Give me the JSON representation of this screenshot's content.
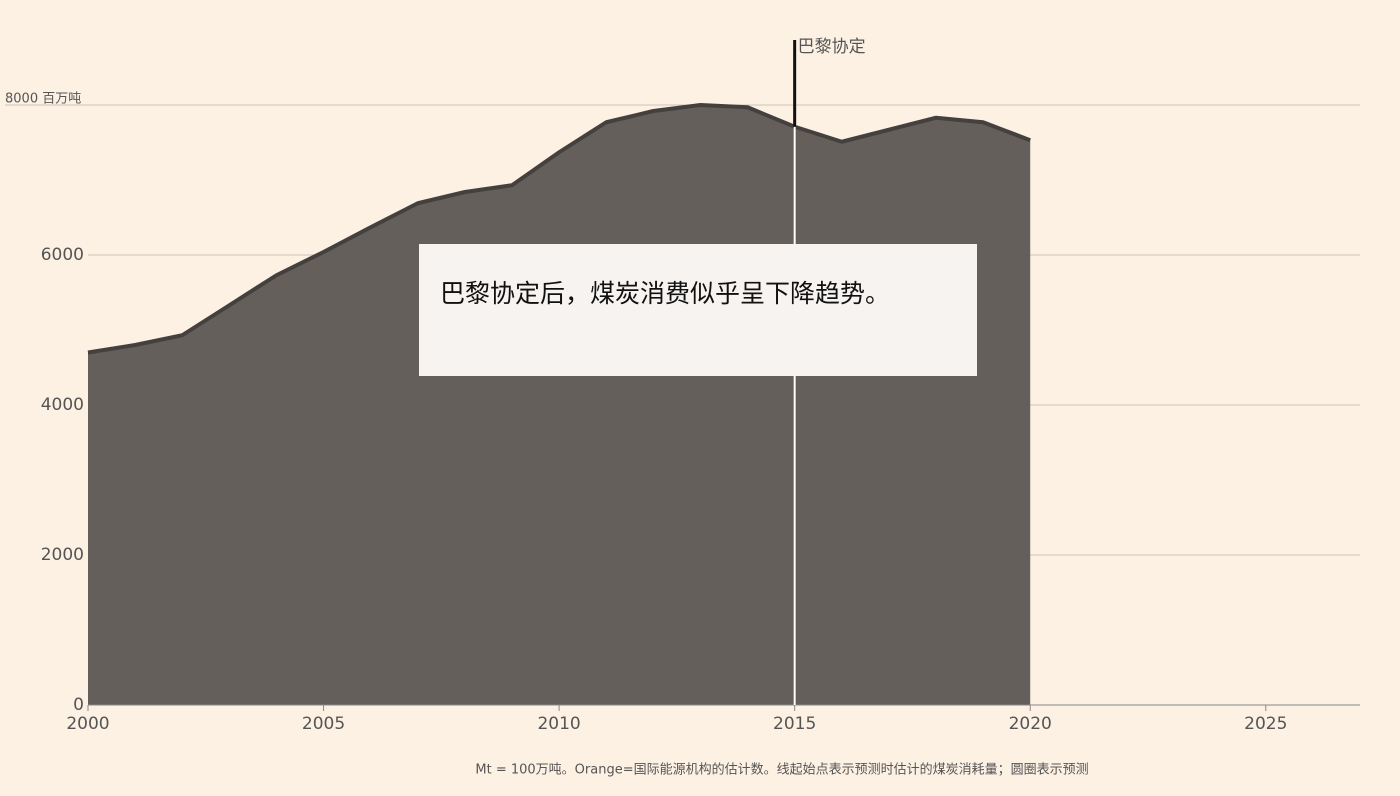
{
  "chart_data": {
    "type": "area",
    "x": [
      2000,
      2001,
      2002,
      2003,
      2004,
      2005,
      2006,
      2007,
      2008,
      2009,
      2010,
      2011,
      2012,
      2013,
      2014,
      2015,
      2016,
      2017,
      2018,
      2019,
      2020
    ],
    "values": [
      4700,
      4800,
      4930,
      5330,
      5730,
      6040,
      6370,
      6690,
      6840,
      6930,
      7370,
      7770,
      7920,
      8000,
      7970,
      7710,
      7510,
      7670,
      7830,
      7770,
      7530
    ],
    "color": "#655f5b",
    "line_color": "#44403e",
    "xlim": [
      2000,
      2027
    ],
    "xticks": [
      2000,
      2005,
      2010,
      2015,
      2020,
      2025
    ],
    "ylim": [
      0,
      8800
    ],
    "yticks": [
      0,
      2000,
      4000,
      6000,
      {
        "value": 8000,
        "label": "8000 百万吨"
      }
    ],
    "grid": true,
    "marker": {
      "x": 2015,
      "label": "巴黎协定"
    },
    "callout": "巴黎协定后，煤炭消费似乎呈下降趋势。",
    "note": "Mt = 100万吨。Orange=国际能源机构的估计数。线起始点表示预测时估计的煤炭消耗量；圆圈表示预测"
  }
}
